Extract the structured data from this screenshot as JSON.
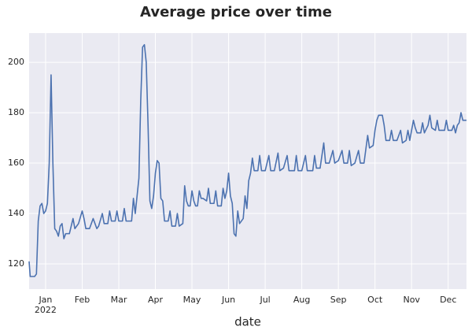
{
  "chart_data": {
    "type": "line",
    "title": "Average price over time",
    "x_label": "date",
    "xticks": [
      {
        "value": 0,
        "label": "Jan"
      },
      {
        "value": 1,
        "label": "Feb"
      },
      {
        "value": 2,
        "label": "Mar"
      },
      {
        "value": 3,
        "label": "Apr"
      },
      {
        "value": 4,
        "label": "May"
      },
      {
        "value": 5,
        "label": "Jun"
      },
      {
        "value": 6,
        "label": "Jul"
      },
      {
        "value": 7,
        "label": "Aug"
      },
      {
        "value": 8,
        "label": "Sep"
      },
      {
        "value": 9,
        "label": "Oct"
      },
      {
        "value": 10,
        "label": "Nov"
      },
      {
        "value": 11,
        "label": "Dec"
      }
    ],
    "xtick_year_label": "2022",
    "xlim": [
      -0.45,
      11.5
    ],
    "ylim": [
      110,
      211.6
    ],
    "yticks": [
      120,
      140,
      160,
      180,
      200
    ],
    "grid": true,
    "series": [
      {
        "name": "price",
        "color": "#4c72b0",
        "x": [
          -0.45,
          -0.42,
          -0.3,
          -0.25,
          -0.2,
          -0.15,
          -0.1,
          -0.05,
          0.0,
          0.05,
          0.1,
          0.15,
          0.2,
          0.25,
          0.3,
          0.35,
          0.4,
          0.45,
          0.5,
          0.55,
          0.65,
          0.7,
          0.75,
          0.8,
          0.9,
          1.0,
          1.05,
          1.1,
          1.2,
          1.3,
          1.35,
          1.4,
          1.45,
          1.55,
          1.6,
          1.7,
          1.75,
          1.8,
          1.9,
          1.95,
          2.0,
          2.1,
          2.15,
          2.2,
          2.35,
          2.4,
          2.45,
          2.55,
          2.6,
          2.65,
          2.7,
          2.75,
          2.8,
          2.85,
          2.9,
          2.95,
          3.0,
          3.05,
          3.1,
          3.15,
          3.2,
          3.25,
          3.35,
          3.4,
          3.45,
          3.55,
          3.6,
          3.65,
          3.75,
          3.8,
          3.85,
          3.9,
          3.95,
          4.0,
          4.05,
          4.1,
          4.15,
          4.2,
          4.25,
          4.3,
          4.4,
          4.45,
          4.5,
          4.6,
          4.65,
          4.7,
          4.8,
          4.85,
          4.9,
          4.95,
          5.0,
          5.05,
          5.1,
          5.15,
          5.2,
          5.25,
          5.3,
          5.4,
          5.45,
          5.5,
          5.55,
          5.6,
          5.65,
          5.7,
          5.8,
          5.85,
          5.9,
          6.0,
          6.1,
          6.15,
          6.25,
          6.35,
          6.4,
          6.5,
          6.6,
          6.65,
          6.8,
          6.85,
          6.9,
          7.0,
          7.1,
          7.15,
          7.3,
          7.35,
          7.4,
          7.5,
          7.6,
          7.65,
          7.75,
          7.85,
          7.9,
          8.0,
          8.1,
          8.15,
          8.25,
          8.3,
          8.35,
          8.45,
          8.55,
          8.6,
          8.7,
          8.8,
          8.85,
          8.95,
          9.0,
          9.05,
          9.1,
          9.2,
          9.25,
          9.3,
          9.4,
          9.45,
          9.5,
          9.6,
          9.7,
          9.75,
          9.85,
          9.9,
          9.95,
          10.0,
          10.05,
          10.1,
          10.15,
          10.25,
          10.3,
          10.35,
          10.45,
          10.5,
          10.55,
          10.65,
          10.7,
          10.75,
          10.9,
          10.95,
          11.0,
          11.1,
          11.15,
          11.2,
          11.25,
          11.3,
          11.35,
          11.4,
          11.5
        ],
        "values": [
          121,
          115,
          115,
          116,
          137,
          143,
          144,
          140,
          141,
          144,
          160,
          195,
          160,
          134,
          133,
          131,
          135,
          136,
          130,
          132,
          132,
          135,
          138,
          134,
          136,
          141,
          138,
          134,
          134,
          138,
          136,
          134,
          135,
          140,
          136,
          136,
          141,
          137,
          137,
          141,
          137,
          137,
          142,
          137,
          137,
          146,
          140,
          154,
          185,
          206,
          207,
          200,
          175,
          145,
          142,
          147,
          156,
          161,
          160,
          146,
          145,
          137,
          137,
          141,
          135,
          135,
          140,
          135,
          136,
          151,
          145,
          143,
          143,
          149,
          145,
          143,
          143,
          149,
          146,
          146,
          145,
          150,
          144,
          144,
          149,
          143,
          143,
          150,
          146,
          149,
          156,
          147,
          144,
          132,
          131,
          141,
          136,
          138,
          147,
          142,
          153,
          156,
          162,
          157,
          157,
          163,
          157,
          157,
          163,
          157,
          157,
          164,
          157,
          158,
          163,
          157,
          157,
          163,
          157,
          157,
          163,
          157,
          157,
          163,
          158,
          158,
          168,
          160,
          160,
          165,
          160,
          161,
          165,
          160,
          160,
          165,
          159,
          160,
          165,
          160,
          160,
          171,
          166,
          167,
          173,
          177,
          179,
          179,
          175,
          169,
          169,
          173,
          169,
          169,
          173,
          168,
          169,
          173,
          169,
          173,
          177,
          174,
          172,
          172,
          176,
          172,
          175,
          179,
          174,
          173,
          177,
          173,
          173,
          177,
          173,
          173,
          175,
          172,
          175,
          176,
          180,
          177,
          177
        ]
      }
    ]
  }
}
